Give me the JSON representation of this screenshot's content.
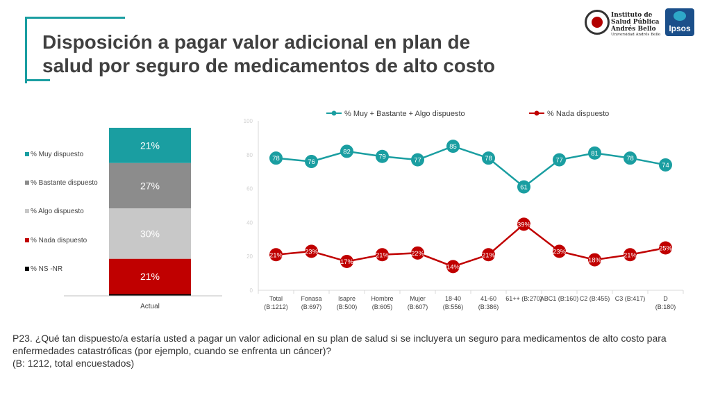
{
  "slide": {
    "title": "Disposición a pagar valor adicional en plan de salud por seguro de medicamentos de alto costo",
    "footnote_question": "P23. ¿Qué tan dispuesto/a estaría usted a pagar un valor adicional en su plan de salud si se incluyera un seguro para medicamentos de alto costo para enfermedades catastróficas (por ejemplo, cuando se enfrenta un cáncer)?",
    "footnote_base": "(B: 1212, total encuestados)"
  },
  "logos": {
    "isp_text": [
      "Instituto de",
      "Salud Pública",
      "Andrés Bello"
    ],
    "isp_sub": "Universidad Andrés Bello",
    "ipsos_text": "Ipsos"
  },
  "colors": {
    "teal": "#1a9ea1",
    "gray_dark": "#8c8c8c",
    "gray_light": "#c8c8c8",
    "red": "#c00000",
    "black": "#000000",
    "title": "#404040"
  },
  "chart_data": [
    {
      "type": "bar",
      "stacked": true,
      "categories": [
        "Actual"
      ],
      "series": [
        {
          "name": "% Muy dispuesto",
          "values": [
            21
          ],
          "labels": [
            "21%"
          ],
          "color": "#1a9ea1"
        },
        {
          "name": "% Bastante dispuesto",
          "values": [
            27
          ],
          "labels": [
            "27%"
          ],
          "color": "#8c8c8c"
        },
        {
          "name": "% Algo dispuesto",
          "values": [
            30
          ],
          "labels": [
            "30%"
          ],
          "color": "#c8c8c8"
        },
        {
          "name": "% Nada dispuesto",
          "values": [
            21
          ],
          "labels": [
            "21%"
          ],
          "color": "#c00000"
        },
        {
          "name": "% NS -NR",
          "values": [
            1
          ],
          "labels": [
            ""
          ],
          "color": "#000000"
        }
      ],
      "legend_position": "left"
    },
    {
      "type": "line",
      "categories": [
        [
          "Total",
          "(B:1212)"
        ],
        [
          "Fonasa",
          "(B:697)"
        ],
        [
          "Isapre",
          "(B:500)"
        ],
        [
          "Hombre",
          "(B:605)"
        ],
        [
          "Mujer",
          "(B:607)"
        ],
        [
          "18-40",
          "(B:556)"
        ],
        [
          "41-60",
          "(B:386)"
        ],
        [
          "61++ (B:270)"
        ],
        [
          "ABC1 (B:160)"
        ],
        [
          "C2 (B:455)"
        ],
        [
          "C3 (B:417)"
        ],
        [
          "D",
          "(B:180)"
        ]
      ],
      "series": [
        {
          "name": "% Muy + Bastante + Algo dispuesto",
          "color": "#1a9ea1",
          "values": [
            78,
            76,
            82,
            79,
            77,
            85,
            78,
            61,
            77,
            81,
            78,
            74
          ],
          "labels": [
            "78",
            "76",
            "82",
            "79",
            "77",
            "85",
            "78",
            "61",
            "77",
            "81",
            "78",
            "74"
          ]
        },
        {
          "name": "% Nada dispuesto",
          "color": "#c00000",
          "values": [
            21,
            23,
            17,
            21,
            22,
            14,
            21,
            39,
            23,
            18,
            21,
            25
          ],
          "labels": [
            "21%",
            "23%",
            "17%",
            "21%",
            "22%",
            "14%",
            "21%",
            "39%",
            "23%",
            "18%",
            "21%",
            "25%"
          ]
        }
      ],
      "ylim": [
        0,
        100
      ],
      "yticks": [
        "0",
        "20",
        "40",
        "60",
        "80",
        "100"
      ],
      "grid": false,
      "legend_position": "top"
    }
  ]
}
